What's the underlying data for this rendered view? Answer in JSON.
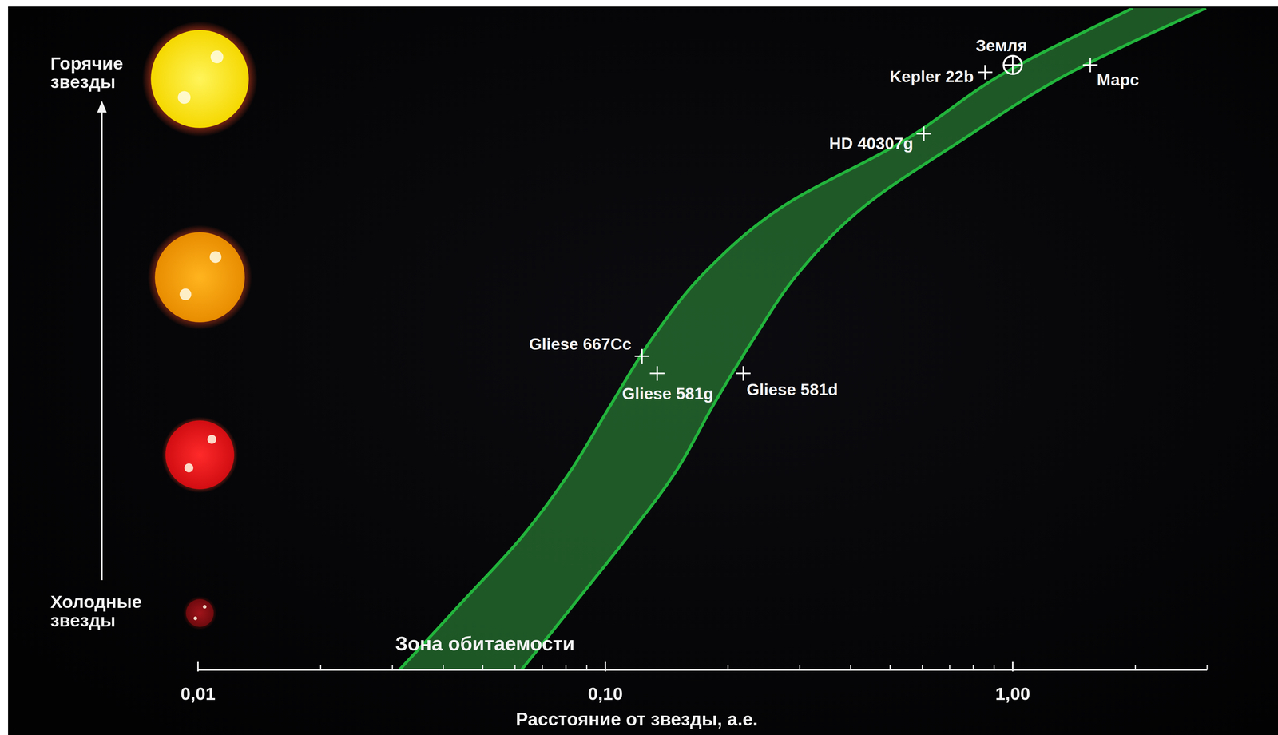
{
  "chart_data": {
    "type": "scatter",
    "log": "x",
    "grid": false,
    "tick_labels": "x",
    "xlabel": "Расстояние от звезды, а.е.",
    "xlim": [
      0.01,
      3
    ],
    "xticks": [
      {
        "value": 0.01,
        "label": "0,01"
      },
      {
        "value": 0.1,
        "label": "0,10"
      },
      {
        "value": 1,
        "label": "1,00"
      }
    ],
    "xminor_ticks": [
      0.02,
      0.03,
      0.04,
      0.05,
      0.06,
      0.07,
      0.08,
      0.09,
      0.2,
      0.3,
      0.4,
      0.5,
      0.6,
      0.7,
      0.8,
      0.9,
      2,
      3
    ],
    "ylim": [
      0,
      1
    ],
    "annotations": {
      "hot_stars": "Горячие звезды",
      "cold_stars": "Холодные звезды"
    },
    "zone": {
      "label": "Зона обитаемости",
      "color": "#2e8b3a",
      "y": [
        0,
        0.1,
        0.2,
        0.3,
        0.4,
        0.5,
        0.6,
        0.7,
        0.8,
        0.9,
        1.0
      ],
      "inner": [
        0.0312,
        0.0441,
        0.0622,
        0.082,
        0.103,
        0.13,
        0.175,
        0.272,
        0.542,
        0.942,
        1.97
      ],
      "outer": [
        0.0622,
        0.0839,
        0.113,
        0.149,
        0.184,
        0.231,
        0.298,
        0.431,
        0.748,
        1.36,
        2.98
      ]
    },
    "series": [
      {
        "marker": "plus",
        "color": "#ffffff",
        "labels": [
          "Kepler 22b",
          "Марс",
          "HD 40307g",
          "Gliese 667Cc",
          "Gliese 581g",
          "Gliese 581d"
        ],
        "x": [
          0.855,
          1.55,
          0.605,
          0.123,
          0.134,
          0.218
        ],
        "values": [
          0.903,
          0.914,
          0.81,
          0.474,
          0.448,
          0.448
        ]
      },
      {
        "marker": "circle-plus",
        "color": "#ffffff",
        "labels": [
          "Земля"
        ],
        "x": [
          1.0
        ],
        "values": [
          0.914
        ]
      }
    ]
  }
}
